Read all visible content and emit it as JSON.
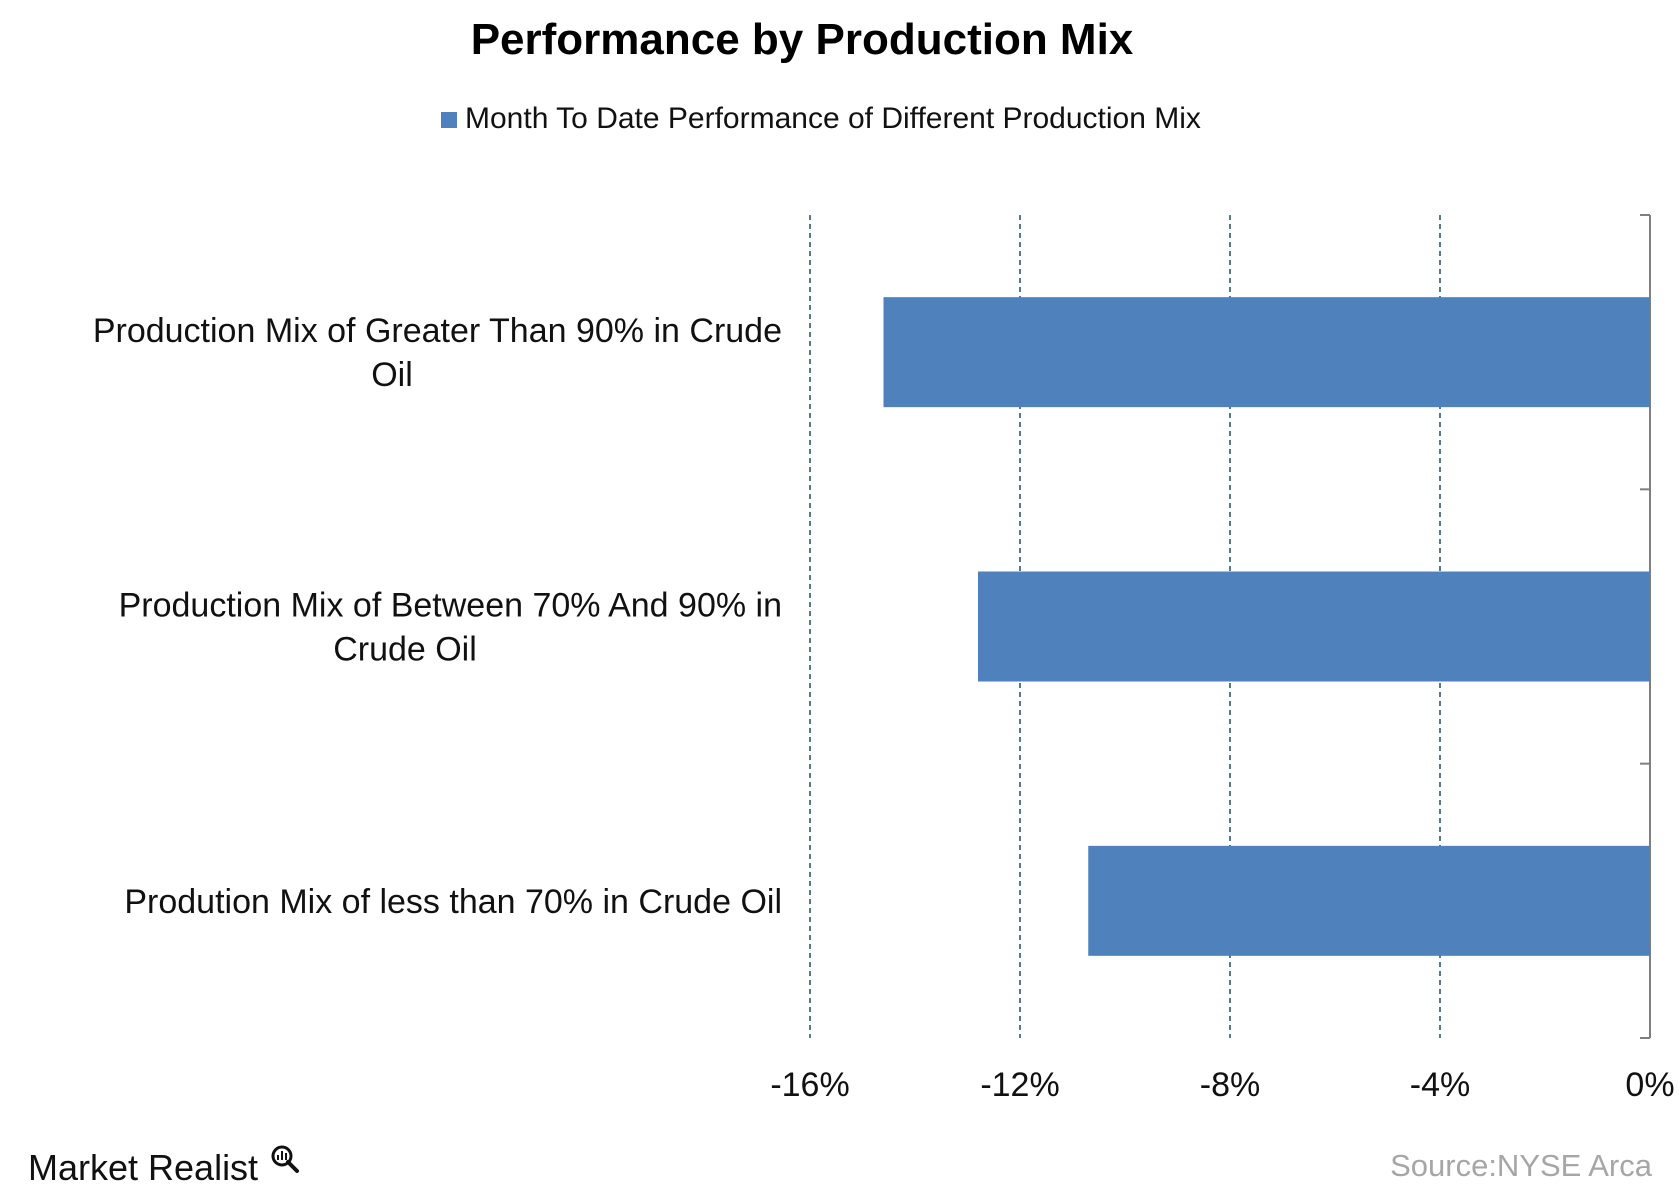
{
  "chart_data": {
    "type": "bar",
    "orientation": "horizontal",
    "title": "Performance by Production Mix",
    "categories": [
      "Production Mix of  Greater Than 90% in Crude Oil",
      "Production Mix of Between  70% And 90% in Crude Oil",
      "Prodution Mix of less than 70% in Crude Oil"
    ],
    "category_lines": [
      [
        "Production Mix of  Greater Than 90% in Crude",
        "Oil"
      ],
      [
        "Production Mix of Between  70% And 90% in",
        "Crude Oil"
      ],
      [
        "Prodution Mix of less than 70% in Crude Oil"
      ]
    ],
    "series": [
      {
        "name": "Month To Date Performance of Different Production Mix",
        "values": [
          -14.6,
          -12.8,
          -10.7
        ],
        "color": "#4f81bd"
      }
    ],
    "xlim": [
      -16,
      0
    ],
    "x_ticks": [
      -16,
      -12,
      -8,
      -4,
      0
    ],
    "x_tick_labels": [
      "-16%",
      "-12%",
      "-8%",
      "-4%",
      "0%"
    ],
    "grid": "vertical dashed",
    "legend_position": "top",
    "source": "Source:NYSE Arca"
  },
  "branding": {
    "logo_text": "Market Realist",
    "logo_icon": "magnifier-chart-icon"
  },
  "colors": {
    "bar": "#4f81bd",
    "grid": "#1f4e63",
    "axis": "#7f7f7f",
    "source": "#a6a6a6"
  }
}
